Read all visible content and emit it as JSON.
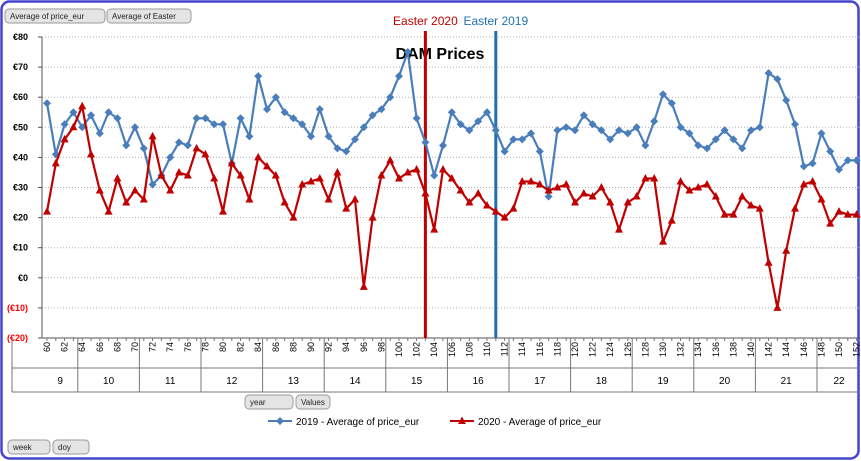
{
  "chart_data": {
    "type": "line",
    "title": "DAM Prices",
    "field_buttons": [
      "Average of price_eur",
      "Average of Easter"
    ],
    "column_buttons": [
      "year",
      "Values"
    ],
    "row_buttons": [
      "week",
      "doy"
    ],
    "categories": [
      60,
      null,
      62,
      null,
      64,
      null,
      66,
      null,
      68,
      null,
      70,
      null,
      72,
      null,
      74,
      null,
      76,
      null,
      78,
      null,
      80,
      null,
      82,
      null,
      84,
      null,
      86,
      null,
      88,
      null,
      90,
      null,
      92,
      null,
      94,
      null,
      96,
      null,
      98,
      null,
      100,
      null,
      102,
      null,
      104,
      null,
      106,
      null,
      108,
      null,
      110,
      null,
      112,
      null,
      114,
      null,
      116,
      null,
      118,
      null,
      120,
      null,
      122,
      null,
      124,
      null,
      126,
      null,
      128,
      null,
      130,
      null,
      132,
      null,
      134,
      null,
      136,
      null,
      138,
      null,
      140,
      null,
      142,
      null,
      144,
      null,
      146,
      null,
      148,
      null,
      150,
      null,
      152
    ],
    "weeks": [
      "9",
      "10",
      "11",
      "12",
      "13",
      "14",
      "15",
      "16",
      "17",
      "18",
      "19",
      "20",
      "21",
      "22"
    ],
    "series": [
      {
        "name": "2019 - Average of price_eur",
        "color": "#4a7ebb",
        "marker": "diamond",
        "values": [
          58,
          41,
          51,
          55,
          50,
          54,
          48,
          55,
          53,
          44,
          50,
          43,
          31,
          34,
          40,
          45,
          44,
          53,
          53,
          51,
          51,
          38,
          53,
          47,
          67,
          56,
          60,
          55,
          53,
          51,
          47,
          56,
          47,
          43,
          42,
          46,
          50,
          54,
          56,
          60,
          67,
          75,
          53,
          45,
          34,
          44,
          55,
          51,
          49,
          52,
          55,
          49,
          42,
          46,
          46,
          48,
          42,
          27,
          49,
          50,
          49,
          54,
          51,
          49,
          46,
          49,
          48,
          50,
          44,
          52,
          61,
          58,
          50,
          48,
          44,
          43,
          46,
          49,
          46,
          43,
          49,
          50,
          68,
          66,
          59,
          51,
          37,
          38,
          48,
          42,
          36,
          39,
          39
        ]
      },
      {
        "name": "2020 - Average of price_eur",
        "color": "#c00000",
        "marker": "triangle",
        "values": [
          22,
          38,
          46,
          50,
          57,
          41,
          29,
          22,
          33,
          25,
          29,
          26,
          47,
          34,
          29,
          35,
          34,
          43,
          41,
          33,
          22,
          38,
          34,
          26,
          40,
          37,
          34,
          25,
          20,
          31,
          32,
          33,
          26,
          35,
          23,
          26,
          -3,
          20,
          34,
          39,
          33,
          35,
          36,
          28,
          16,
          36,
          33,
          29,
          25,
          28,
          24,
          22,
          20,
          23,
          32,
          32,
          31,
          29,
          30,
          31,
          25,
          28,
          27,
          30,
          25,
          16,
          25,
          27,
          33,
          33,
          12,
          19,
          32,
          29,
          30,
          31,
          27,
          21,
          21,
          27,
          24,
          23,
          5,
          -10,
          9,
          23,
          31,
          32,
          26,
          18,
          22,
          21,
          21
        ]
      }
    ],
    "annotations": [
      {
        "label": "Easter 2020",
        "x": 103,
        "color": "#c00000"
      },
      {
        "label": "Easter 2019",
        "x": 111,
        "color": "#1f6fb5"
      }
    ],
    "ylim": [
      -20,
      80
    ],
    "yticks": [
      {
        "value": -20,
        "label": "(€20)"
      },
      {
        "value": -10,
        "label": "(€10)"
      },
      {
        "value": 0,
        "label": "€0"
      },
      {
        "value": 10,
        "label": "€10"
      },
      {
        "value": 20,
        "label": "€20"
      },
      {
        "value": 30,
        "label": "€30"
      },
      {
        "value": 40,
        "label": "€40"
      },
      {
        "value": 50,
        "label": "€50"
      },
      {
        "value": 60,
        "label": "€60"
      },
      {
        "value": 70,
        "label": "€70"
      },
      {
        "value": 80,
        "label": "€80"
      }
    ],
    "negative_color": "#ff0000",
    "grid": true
  }
}
